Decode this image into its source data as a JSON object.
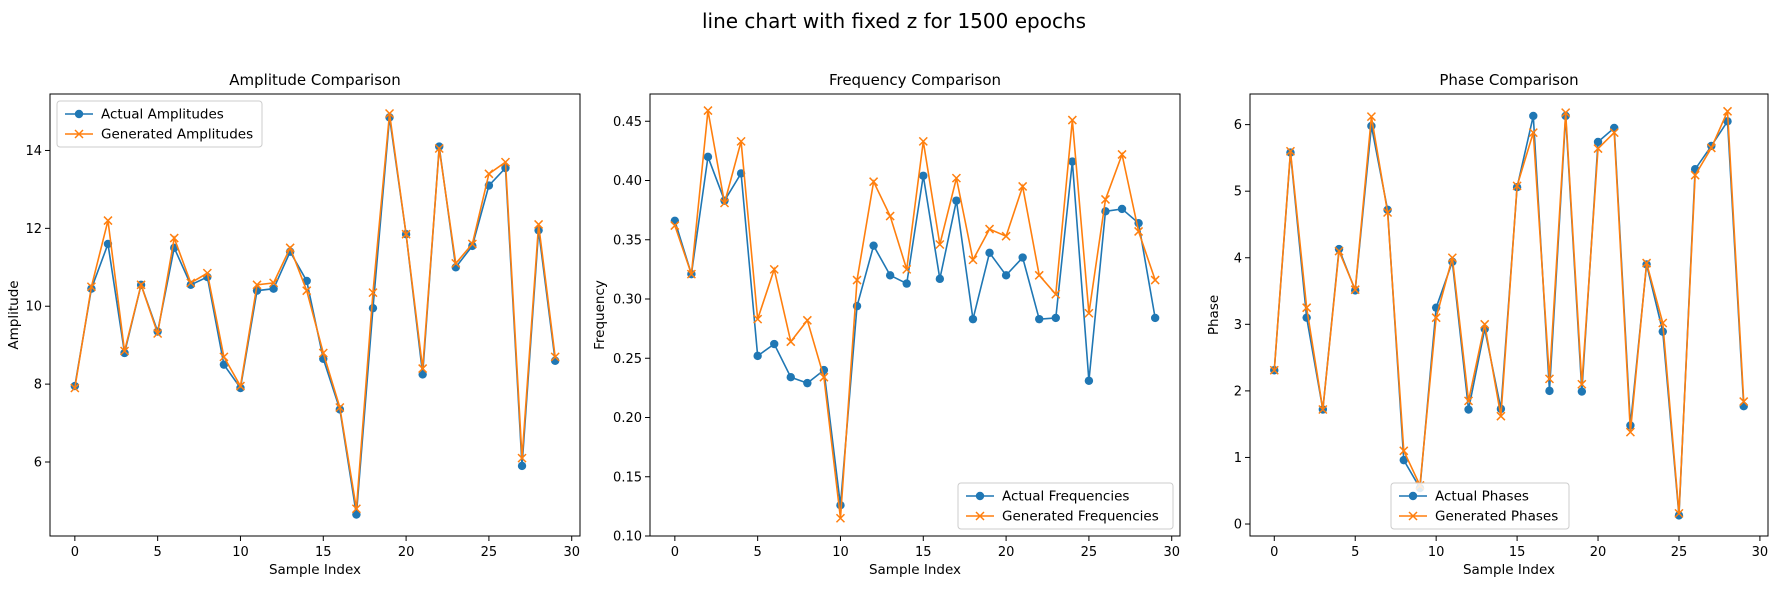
{
  "figure": {
    "title": "line chart with fixed z for 1500 epochs"
  },
  "colors": {
    "actual": "#1f77b4",
    "generated": "#ff7f0e"
  },
  "chart_data": [
    {
      "type": "line",
      "title": "Amplitude Comparison",
      "xlabel": "Sample Index",
      "ylabel": "Amplitude",
      "xlim": [
        -1.5,
        30.5
      ],
      "ylim": [
        4.1,
        15.45
      ],
      "xticks": [
        0,
        5,
        10,
        15,
        20,
        25,
        30
      ],
      "yticks": [
        6,
        8,
        10,
        12,
        14
      ],
      "ytick_decimals": 0,
      "legend": "upper-left",
      "x": [
        0,
        1,
        2,
        3,
        4,
        5,
        6,
        7,
        8,
        9,
        10,
        11,
        12,
        13,
        14,
        15,
        16,
        17,
        18,
        19,
        20,
        21,
        22,
        23,
        24,
        25,
        26,
        27,
        28,
        29
      ],
      "series": [
        {
          "name": "Actual Amplitudes",
          "marker": "circle",
          "values": [
            7.95,
            10.45,
            11.6,
            8.8,
            10.55,
            9.35,
            11.5,
            10.55,
            10.75,
            8.5,
            7.9,
            10.4,
            10.45,
            11.4,
            10.65,
            8.65,
            7.35,
            4.65,
            9.95,
            14.85,
            11.85,
            8.25,
            14.1,
            11.0,
            11.55,
            13.1,
            13.55,
            5.9,
            11.95,
            8.6
          ]
        },
        {
          "name": "Generated Amplitudes",
          "marker": "x",
          "values": [
            7.9,
            10.5,
            12.2,
            8.85,
            10.55,
            9.3,
            11.75,
            10.6,
            10.85,
            8.7,
            7.95,
            10.55,
            10.6,
            11.5,
            10.4,
            8.8,
            7.4,
            4.8,
            10.35,
            14.95,
            11.85,
            8.4,
            14.05,
            11.1,
            11.6,
            13.4,
            13.7,
            6.1,
            12.1,
            8.7
          ]
        }
      ]
    },
    {
      "type": "line",
      "title": "Frequency Comparison",
      "xlabel": "Sample Index",
      "ylabel": "Frequency",
      "xlim": [
        -1.5,
        30.5
      ],
      "ylim": [
        0.1,
        0.473
      ],
      "xticks": [
        0,
        5,
        10,
        15,
        20,
        25,
        30
      ],
      "yticks": [
        0.1,
        0.15,
        0.2,
        0.25,
        0.3,
        0.35,
        0.4,
        0.45
      ],
      "ytick_decimals": 2,
      "legend": "lower-right",
      "x": [
        0,
        1,
        2,
        3,
        4,
        5,
        6,
        7,
        8,
        9,
        10,
        11,
        12,
        13,
        14,
        15,
        16,
        17,
        18,
        19,
        20,
        21,
        22,
        23,
        24,
        25,
        26,
        27,
        28,
        29
      ],
      "series": [
        {
          "name": "Actual Frequencies",
          "marker": "circle",
          "values": [
            0.366,
            0.321,
            0.42,
            0.383,
            0.406,
            0.252,
            0.262,
            0.234,
            0.229,
            0.24,
            0.126,
            0.294,
            0.345,
            0.32,
            0.313,
            0.404,
            0.317,
            0.383,
            0.283,
            0.339,
            0.32,
            0.335,
            0.283,
            0.284,
            0.416,
            0.231,
            0.374,
            0.376,
            0.364,
            0.284
          ]
        },
        {
          "name": "Generated Frequencies",
          "marker": "x",
          "values": [
            0.362,
            0.321,
            0.459,
            0.381,
            0.433,
            0.283,
            0.325,
            0.264,
            0.282,
            0.234,
            0.115,
            0.316,
            0.399,
            0.37,
            0.325,
            0.433,
            0.346,
            0.402,
            0.333,
            0.359,
            0.353,
            0.395,
            0.32,
            0.304,
            0.451,
            0.288,
            0.384,
            0.422,
            0.357,
            0.316
          ]
        }
      ]
    },
    {
      "type": "line",
      "title": "Phase Comparison",
      "xlabel": "Sample Index",
      "ylabel": "Phase",
      "xlim": [
        -1.5,
        30.5
      ],
      "ylim": [
        -0.18,
        6.46
      ],
      "xticks": [
        0,
        5,
        10,
        15,
        20,
        25,
        30
      ],
      "yticks": [
        0,
        1,
        2,
        3,
        4,
        5,
        6
      ],
      "ytick_decimals": 0,
      "legend": "lower-center",
      "x": [
        0,
        1,
        2,
        3,
        4,
        5,
        6,
        7,
        8,
        9,
        10,
        11,
        12,
        13,
        14,
        15,
        16,
        17,
        18,
        19,
        20,
        21,
        22,
        23,
        24,
        25,
        26,
        27,
        28,
        29
      ],
      "series": [
        {
          "name": "Actual Phases",
          "marker": "circle",
          "values": [
            2.31,
            5.58,
            3.1,
            1.72,
            4.13,
            3.51,
            5.98,
            4.72,
            0.96,
            0.54,
            3.25,
            3.94,
            1.72,
            2.93,
            1.73,
            5.06,
            6.13,
            2.0,
            6.13,
            1.99,
            5.74,
            5.95,
            1.48,
            3.9,
            2.89,
            0.13,
            5.33,
            5.68,
            6.05,
            1.77
          ]
        },
        {
          "name": "Generated Phases",
          "marker": "x",
          "values": [
            2.31,
            5.6,
            3.25,
            1.72,
            4.1,
            3.52,
            6.12,
            4.68,
            1.1,
            0.58,
            3.1,
            4.0,
            1.85,
            3.0,
            1.62,
            5.08,
            5.88,
            2.18,
            6.18,
            2.1,
            5.64,
            5.88,
            1.38,
            3.92,
            3.02,
            0.16,
            5.24,
            5.65,
            6.2,
            1.84
          ]
        }
      ]
    }
  ]
}
